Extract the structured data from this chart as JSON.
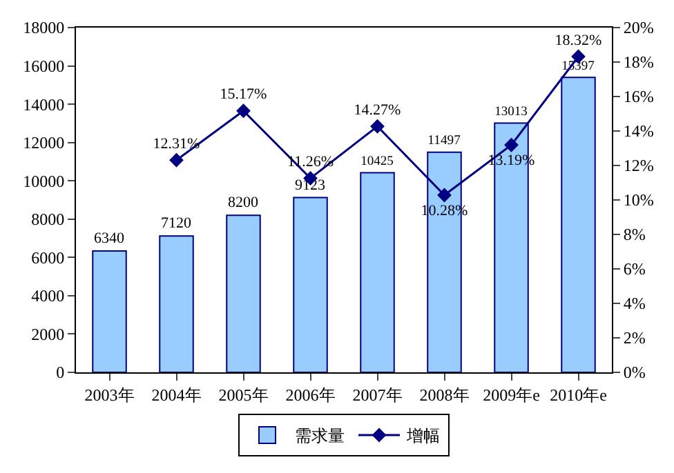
{
  "chart_data": {
    "type": "bar",
    "categories": [
      "2003年",
      "2004年",
      "2005年",
      "2006年",
      "2007年",
      "2008年",
      "2009年e",
      "2010年e"
    ],
    "series": [
      {
        "name": "需求量",
        "color": "#99ccff",
        "values": [
          6340,
          7120,
          8200,
          9123,
          10425,
          11497,
          13013,
          15397
        ],
        "data_labels": true
      },
      {
        "name": "增幅",
        "type": "line",
        "axis": "y2",
        "color": "#000080",
        "marker": "diamond",
        "values": [
          null,
          12.31,
          15.17,
          11.26,
          14.27,
          10.28,
          13.19,
          18.32
        ],
        "value_labels": [
          null,
          "12.31%",
          "15.17%",
          "11.26%",
          "14.27%",
          "10.28%",
          "13.19%",
          "18.32%"
        ]
      }
    ],
    "ylim": [
      0,
      18000
    ],
    "yticks": [
      0,
      2000,
      4000,
      6000,
      8000,
      10000,
      12000,
      14000,
      16000,
      18000
    ],
    "y2lim": [
      0,
      20
    ],
    "y2ticks": [
      {
        "value": 0,
        "label": "0%"
      },
      {
        "value": 2,
        "label": "2%"
      },
      {
        "value": 4,
        "label": "4%"
      },
      {
        "value": 6,
        "label": "6%"
      },
      {
        "value": 8,
        "label": "8%"
      },
      {
        "value": 10,
        "label": "10%"
      },
      {
        "value": 12,
        "label": "12%"
      },
      {
        "value": 14,
        "label": "14%"
      },
      {
        "value": 16,
        "label": "16%"
      },
      {
        "value": 18,
        "label": "18%"
      },
      {
        "value": 20,
        "label": "20%"
      }
    ],
    "legend": "bottom"
  }
}
